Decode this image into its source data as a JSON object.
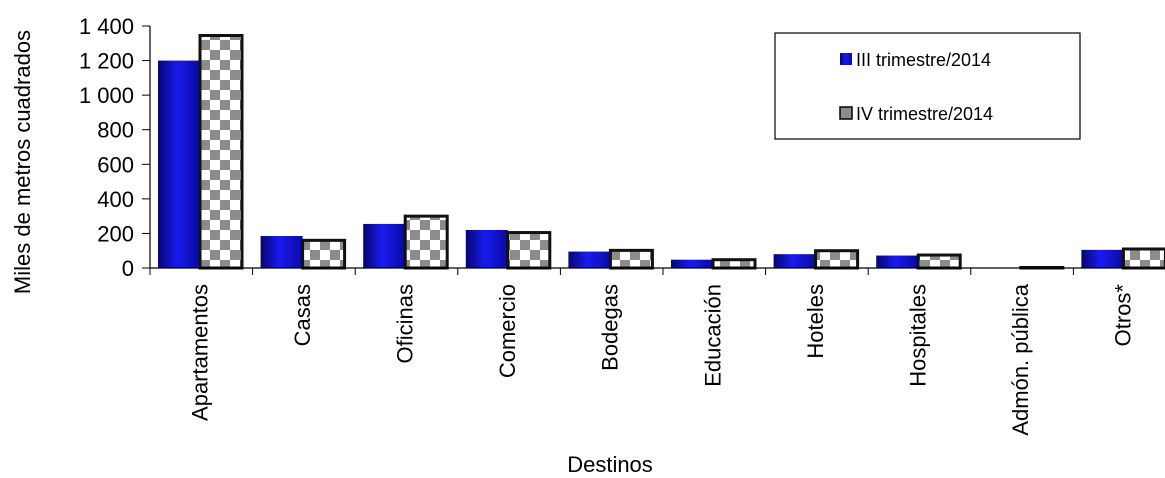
{
  "chart_data": {
    "type": "bar",
    "title": "",
    "xlabel": "Destinos",
    "ylabel": "Miles de metros cuadrados",
    "ylim": [
      0,
      1400
    ],
    "yticks": [
      0,
      200,
      400,
      600,
      800,
      1000,
      1200,
      1400
    ],
    "ytick_labels": [
      "0",
      "200",
      "400",
      "600",
      "800",
      "1 000",
      "1 200",
      "1 400"
    ],
    "categories": [
      "Apartamentos",
      "Casas",
      "Oficinas",
      "Comercio",
      "Bodegas",
      "Educación",
      "Hoteles",
      "Hospitales",
      "Admón. pública",
      "Otros*"
    ],
    "series": [
      {
        "name": "III trimestre/2014",
        "color": "#1414c8",
        "values": [
          1200,
          185,
          255,
          220,
          95,
          48,
          80,
          72,
          3,
          105
        ]
      },
      {
        "name": "IV trimestre/2014",
        "color": "#8c8c8c",
        "values": [
          1345,
          160,
          300,
          205,
          102,
          48,
          100,
          75,
          3,
          110
        ]
      }
    ],
    "legend_position": "top-right",
    "grid": false
  }
}
